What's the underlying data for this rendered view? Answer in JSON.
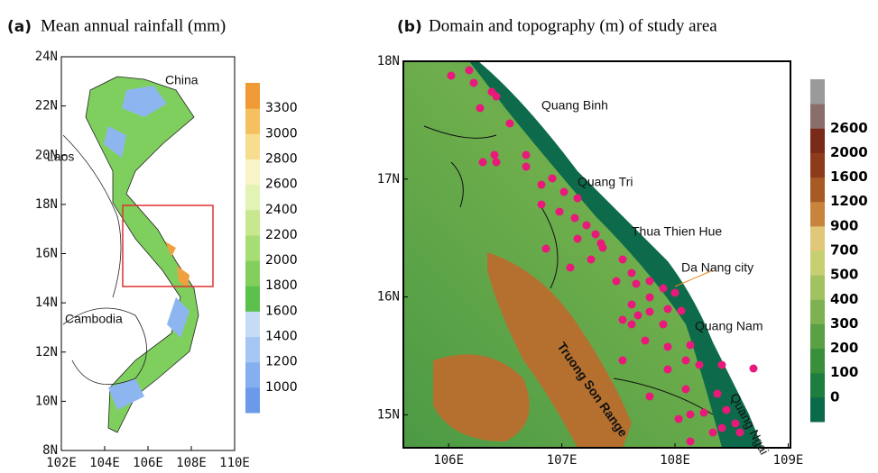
{
  "panels": [
    {
      "tag": "(a)",
      "title": "Mean annual rainfall (mm)",
      "xlim": [
        102,
        110
      ],
      "ylim": [
        8,
        24
      ],
      "xticks": [
        {
          "value": 102,
          "label": "102E"
        },
        {
          "value": 104,
          "label": "104E"
        },
        {
          "value": 106,
          "label": "106E"
        },
        {
          "value": 108,
          "label": "108E"
        },
        {
          "value": 110,
          "label": "110E"
        }
      ],
      "yticks": [
        {
          "value": 8,
          "label": "8N"
        },
        {
          "value": 10,
          "label": "10N"
        },
        {
          "value": 12,
          "label": "12N"
        },
        {
          "value": 14,
          "label": "14N"
        },
        {
          "value": 16,
          "label": "16N"
        },
        {
          "value": 18,
          "label": "18N"
        },
        {
          "value": 20,
          "label": "20N"
        },
        {
          "value": 22,
          "label": "22N"
        },
        {
          "value": 24,
          "label": "24N"
        }
      ],
      "colorbar": {
        "labels": [
          1000,
          1200,
          1400,
          1600,
          1800,
          2000,
          2200,
          2400,
          2600,
          2800,
          3000,
          3300
        ],
        "colors": [
          "#6a9ae8",
          "#86afef",
          "#a6c6f3",
          "#c4dcf6",
          "#5cc04c",
          "#82cf5e",
          "#a8dd76",
          "#c7e88f",
          "#e2f3b4",
          "#f7f4c8",
          "#f7de8f",
          "#f5c060",
          "#f09a35"
        ]
      },
      "places": [
        "China",
        "Laos",
        "Cambodia"
      ]
    },
    {
      "tag": "(b)",
      "title": "Domain and topography (m) of study area",
      "xlim": [
        105.6,
        109.02
      ],
      "ylim": [
        14.72,
        18
      ],
      "xticks": [
        {
          "value": 106,
          "label": "106E"
        },
        {
          "value": 107,
          "label": "107E"
        },
        {
          "value": 108,
          "label": "108E"
        },
        {
          "value": 109,
          "label": "109E"
        }
      ],
      "yticks": [
        {
          "value": 15,
          "label": "15N"
        },
        {
          "value": 16,
          "label": "16N"
        },
        {
          "value": 17,
          "label": "17N"
        },
        {
          "value": 18,
          "label": "18N"
        }
      ],
      "colorbar": {
        "labels": [
          0,
          100,
          200,
          300,
          400,
          500,
          700,
          900,
          1200,
          1600,
          2000,
          2600
        ],
        "colors": [
          "#0b6a4a",
          "#1f7d3f",
          "#3a8f3a",
          "#5aa044",
          "#7db151",
          "#a2c262",
          "#c8cf73",
          "#e1c779",
          "#c8843d",
          "#a85a24",
          "#8e3b1c",
          "#7a2a18",
          "#8a6e6a",
          "#9a9a9a"
        ]
      },
      "places": [
        "Quang Binh",
        "Quang Tri",
        "Thua Thien Hue",
        "Da Nang city",
        "Quang Nam",
        "Quang Ngai",
        "Truong Son Range"
      ]
    }
  ]
}
